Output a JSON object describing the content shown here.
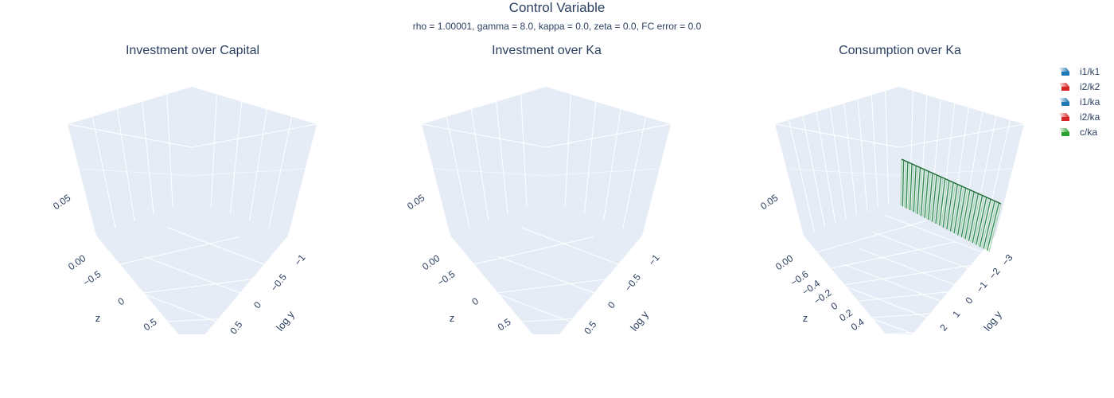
{
  "figure": {
    "title": "Control Variable",
    "subtitle": "rho = 1.00001, gamma = 8.0, kappa = 0.0, zeta = 0.0, FC error = 0.0"
  },
  "panels": [
    {
      "title": "Investment over Capital",
      "x_ticks": [
        "−0.5",
        "0",
        "0.5"
      ],
      "y_ticks": [
        "−1",
        "−0.5",
        "0",
        "0.5"
      ],
      "z_ticks": [
        "0.00",
        "0.05"
      ],
      "x_title": "z",
      "y_title": "log y"
    },
    {
      "title": "Investment over Ka",
      "x_ticks": [
        "−0.5",
        "0",
        "0.5"
      ],
      "y_ticks": [
        "−1",
        "−0.5",
        "0",
        "0.5"
      ],
      "z_ticks": [
        "0.00",
        "0.05"
      ],
      "x_title": "z",
      "y_title": "log y"
    },
    {
      "title": "Consumption over Ka",
      "x_ticks": [
        "−0.6",
        "−0.4",
        "−0.2",
        "0",
        "0.2",
        "0.4"
      ],
      "y_ticks": [
        "−3",
        "−2",
        "−1",
        "0",
        "1",
        "2"
      ],
      "z_ticks": [
        "0.00",
        "0.05"
      ],
      "x_title": "z",
      "y_title": "log y"
    }
  ],
  "legend": [
    {
      "label": "i1/k1",
      "color": "#1f77b4",
      "colorscale": "Blues"
    },
    {
      "label": "i2/k2",
      "color": "#d62728",
      "colorscale": "Reds"
    },
    {
      "label": "i1/ka",
      "color": "#1f77b4",
      "colorscale": "Blues"
    },
    {
      "label": "i2/ka",
      "color": "#d62728",
      "colorscale": "Reds"
    },
    {
      "label": "c/ka",
      "color": "#2ca02c",
      "colorscale": "Greens"
    }
  ],
  "chart_data": [
    {
      "type": "surface",
      "title": "Investment over Capital",
      "series": [
        {
          "name": "i1/k1"
        },
        {
          "name": "i2/k2"
        }
      ],
      "xlabel": "z",
      "ylabel": "log y",
      "zlabel": "",
      "xlim": [
        -1,
        1
      ],
      "ylim": [
        -1,
        1
      ],
      "zlim": [
        0,
        0.07
      ],
      "grid": true,
      "legend_position": "top-right"
    },
    {
      "type": "surface",
      "title": "Investment over Ka",
      "series": [
        {
          "name": "i1/ka"
        },
        {
          "name": "i2/ka"
        }
      ],
      "xlabel": "z",
      "ylabel": "log y",
      "zlabel": "",
      "xlim": [
        -1,
        1
      ],
      "ylim": [
        -1,
        1
      ],
      "zlim": [
        0,
        0.07
      ],
      "grid": true,
      "legend_position": "top-right"
    },
    {
      "type": "surface",
      "title": "Consumption over Ka",
      "series": [
        {
          "name": "c/ka",
          "x": [
            -0.75,
            -0.75
          ],
          "y_range": [
            -3.4,
            2.5
          ],
          "z_range": [
            0.0,
            0.04
          ]
        }
      ],
      "xlabel": "z",
      "ylabel": "log y",
      "zlabel": "",
      "xlim": [
        -0.75,
        0.55
      ],
      "ylim": [
        -3.4,
        2.5
      ],
      "zlim": [
        0,
        0.07
      ],
      "grid": true,
      "legend_position": "top-right"
    }
  ]
}
